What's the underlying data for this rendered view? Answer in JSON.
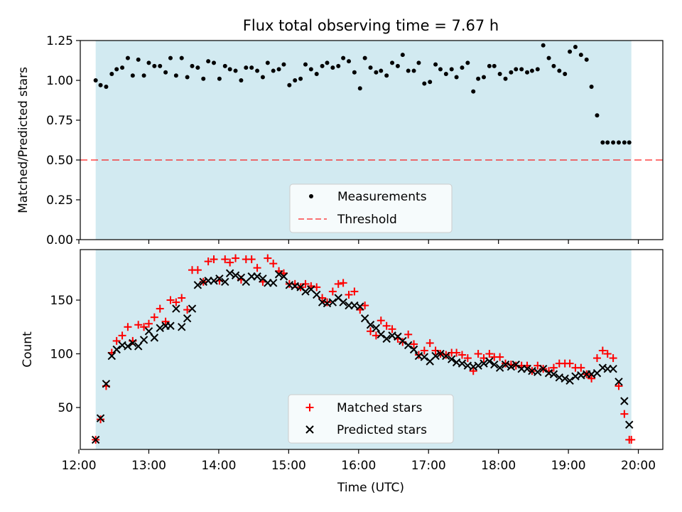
{
  "title": "Flux total observing time = 7.67 h",
  "colors": {
    "shade": "#add8e6",
    "measurement": "#000000",
    "threshold": "#ff0000",
    "matched": "#ff0000",
    "predicted": "#000000"
  },
  "chart_data": [
    {
      "type": "scatter",
      "panel": "top",
      "ylabel": "Matched/Predicted stars",
      "xlim": [
        12.02,
        20.35
      ],
      "ylim": [
        0,
        1.25
      ],
      "yticks": [
        0.0,
        0.25,
        0.5,
        0.75,
        1.0,
        1.25
      ],
      "ytick_labels": [
        "0.00",
        "0.25",
        "0.50",
        "0.75",
        "1.00",
        "1.25"
      ],
      "shaded_span": [
        12.24,
        19.9
      ],
      "threshold": 0.5,
      "legend": {
        "placement": "lower center",
        "entries": [
          "Measurements",
          "Threshold"
        ]
      },
      "series": [
        {
          "name": "Measurements",
          "marker": "dot",
          "x": [
            12.24,
            12.31,
            12.39,
            12.47,
            12.54,
            12.62,
            12.7,
            12.77,
            12.85,
            12.93,
            13.0,
            13.08,
            13.16,
            13.24,
            13.31,
            13.39,
            13.47,
            13.55,
            13.62,
            13.7,
            13.78,
            13.85,
            13.93,
            14.01,
            14.09,
            14.16,
            14.24,
            14.32,
            14.39,
            14.47,
            14.55,
            14.63,
            14.7,
            14.78,
            14.86,
            14.93,
            15.01,
            15.09,
            15.17,
            15.24,
            15.32,
            15.4,
            15.48,
            15.55,
            15.63,
            15.71,
            15.78,
            15.86,
            15.94,
            16.02,
            16.09,
            16.17,
            16.25,
            16.32,
            16.4,
            16.48,
            16.56,
            16.63,
            16.71,
            16.79,
            16.86,
            16.94,
            17.02,
            17.1,
            17.17,
            17.25,
            17.33,
            17.4,
            17.48,
            17.56,
            17.64,
            17.71,
            17.79,
            17.87,
            17.94,
            18.02,
            18.1,
            18.18,
            18.25,
            18.33,
            18.41,
            18.48,
            18.56,
            18.64,
            18.72,
            18.79,
            18.87,
            18.95,
            19.02,
            19.1,
            19.18,
            19.26,
            19.33,
            19.41,
            19.49,
            19.56,
            19.64,
            19.72,
            19.8,
            19.87
          ],
          "y": [
            1.0,
            0.97,
            0.96,
            1.04,
            1.07,
            1.08,
            1.14,
            1.03,
            1.13,
            1.03,
            1.11,
            1.09,
            1.09,
            1.05,
            1.14,
            1.03,
            1.14,
            1.02,
            1.09,
            1.08,
            1.01,
            1.12,
            1.11,
            1.01,
            1.09,
            1.07,
            1.06,
            1.0,
            1.08,
            1.08,
            1.06,
            1.02,
            1.11,
            1.06,
            1.07,
            1.1,
            0.97,
            1.0,
            1.01,
            1.1,
            1.07,
            1.04,
            1.09,
            1.11,
            1.08,
            1.09,
            1.14,
            1.12,
            1.05,
            0.95,
            1.14,
            1.08,
            1.05,
            1.06,
            1.03,
            1.11,
            1.09,
            1.16,
            1.06,
            1.06,
            1.11,
            0.98,
            0.99,
            1.1,
            1.07,
            1.04,
            1.07,
            1.02,
            1.08,
            1.11,
            0.93,
            1.01,
            1.02,
            1.09,
            1.09,
            1.04,
            1.01,
            1.05,
            1.07,
            1.07,
            1.05,
            1.06,
            1.07,
            1.22,
            1.14,
            1.09,
            1.06,
            1.04,
            1.18,
            1.21,
            1.16,
            1.13,
            0.96,
            0.78,
            0.61,
            0.61,
            0.61,
            0.61,
            0.61,
            0.61
          ]
        },
        {
          "name": "Threshold",
          "marker": "dashed-line",
          "y": 0.5
        }
      ]
    },
    {
      "type": "scatter",
      "panel": "bottom",
      "ylabel": "Count",
      "xlabel": "Time (UTC)",
      "xlim": [
        12.02,
        20.35
      ],
      "ylim": [
        11,
        197
      ],
      "yticks": [
        50,
        100,
        150
      ],
      "ytick_labels": [
        "50",
        "100",
        "150"
      ],
      "xticks": [
        12,
        13,
        14,
        15,
        16,
        17,
        18,
        19,
        20
      ],
      "xtick_labels": [
        "12:00",
        "13:00",
        "14:00",
        "15:00",
        "16:00",
        "17:00",
        "18:00",
        "19:00",
        "20:00"
      ],
      "shaded_span": [
        12.24,
        19.9
      ],
      "legend": {
        "placement": "lower center",
        "entries": [
          "Matched stars",
          "Predicted stars"
        ]
      },
      "series": [
        {
          "name": "Matched stars",
          "marker": "plus",
          "x": [
            12.24,
            12.31,
            12.39,
            12.47,
            12.54,
            12.62,
            12.7,
            12.77,
            12.85,
            12.93,
            13.0,
            13.08,
            13.16,
            13.24,
            13.31,
            13.39,
            13.47,
            13.55,
            13.62,
            13.7,
            13.78,
            13.85,
            13.93,
            14.01,
            14.09,
            14.16,
            14.24,
            14.32,
            14.39,
            14.47,
            14.55,
            14.63,
            14.7,
            14.78,
            14.86,
            14.93,
            15.01,
            15.09,
            15.17,
            15.24,
            15.32,
            15.4,
            15.48,
            15.55,
            15.63,
            15.71,
            15.78,
            15.86,
            15.94,
            16.02,
            16.09,
            16.17,
            16.25,
            16.32,
            16.4,
            16.48,
            16.56,
            16.63,
            16.71,
            16.79,
            16.86,
            16.94,
            17.02,
            17.1,
            17.17,
            17.25,
            17.33,
            17.4,
            17.48,
            17.56,
            17.64,
            17.71,
            17.79,
            17.87,
            17.94,
            18.02,
            18.1,
            18.18,
            18.25,
            18.33,
            18.41,
            18.48,
            18.56,
            18.64,
            18.72,
            18.79,
            18.87,
            18.95,
            19.02,
            19.1,
            19.18,
            19.26,
            19.33,
            19.41,
            19.49,
            19.56,
            19.64,
            19.72,
            19.8,
            19.87,
            19.9
          ],
          "y": [
            20,
            39,
            70,
            101,
            112,
            117,
            125,
            112,
            127,
            125,
            128,
            134,
            142,
            130,
            150,
            148,
            152,
            141,
            178,
            178,
            167,
            186,
            188,
            168,
            188,
            185,
            189,
            169,
            188,
            188,
            180,
            167,
            189,
            184,
            177,
            175,
            165,
            165,
            162,
            165,
            163,
            162,
            152,
            148,
            158,
            165,
            166,
            155,
            158,
            141,
            145,
            121,
            117,
            131,
            126,
            123,
            114,
            111,
            118,
            109,
            99,
            103,
            110,
            103,
            100,
            99,
            101,
            101,
            99,
            96,
            84,
            100,
            96,
            100,
            97,
            97,
            91,
            90,
            89,
            89,
            89,
            84,
            89,
            86,
            84,
            87,
            91,
            91,
            91,
            87,
            87,
            81,
            77,
            96,
            103,
            100,
            96,
            70,
            44,
            20,
            20
          ]
        },
        {
          "name": "Predicted stars",
          "marker": "x",
          "x": [
            12.24,
            12.31,
            12.39,
            12.47,
            12.54,
            12.62,
            12.7,
            12.77,
            12.85,
            12.93,
            13.0,
            13.08,
            13.16,
            13.24,
            13.31,
            13.39,
            13.47,
            13.55,
            13.62,
            13.7,
            13.78,
            13.85,
            13.93,
            14.01,
            14.09,
            14.16,
            14.24,
            14.32,
            14.39,
            14.47,
            14.55,
            14.63,
            14.7,
            14.78,
            14.86,
            14.93,
            15.01,
            15.09,
            15.17,
            15.24,
            15.32,
            15.4,
            15.48,
            15.55,
            15.63,
            15.71,
            15.78,
            15.86,
            15.94,
            16.02,
            16.09,
            16.17,
            16.25,
            16.32,
            16.4,
            16.48,
            16.56,
            16.63,
            16.71,
            16.79,
            16.86,
            16.94,
            17.02,
            17.1,
            17.17,
            17.25,
            17.33,
            17.4,
            17.48,
            17.56,
            17.64,
            17.71,
            17.79,
            17.87,
            17.94,
            18.02,
            18.1,
            18.18,
            18.25,
            18.33,
            18.41,
            18.48,
            18.56,
            18.64,
            18.72,
            18.79,
            18.87,
            18.95,
            19.02,
            19.1,
            19.18,
            19.26,
            19.33,
            19.41,
            19.49,
            19.56,
            19.64,
            19.72,
            19.8,
            19.87
          ],
          "y": [
            20,
            40,
            72,
            98,
            104,
            108,
            107,
            110,
            107,
            113,
            121,
            115,
            124,
            126,
            126,
            142,
            125,
            133,
            142,
            164,
            167,
            168,
            168,
            170,
            167,
            175,
            173,
            171,
            167,
            172,
            172,
            170,
            166,
            166,
            174,
            172,
            164,
            163,
            162,
            158,
            160,
            155,
            148,
            147,
            148,
            152,
            148,
            145,
            145,
            144,
            133,
            127,
            124,
            118,
            114,
            117,
            116,
            112,
            108,
            104,
            98,
            97,
            93,
            98,
            100,
            98,
            95,
            92,
            91,
            89,
            88,
            89,
            91,
            93,
            90,
            87,
            90,
            88,
            90,
            86,
            86,
            84,
            83,
            86,
            82,
            81,
            78,
            77,
            75,
            79,
            80,
            81,
            81,
            82,
            87,
            86,
            86,
            74,
            56,
            34
          ]
        }
      ]
    }
  ]
}
